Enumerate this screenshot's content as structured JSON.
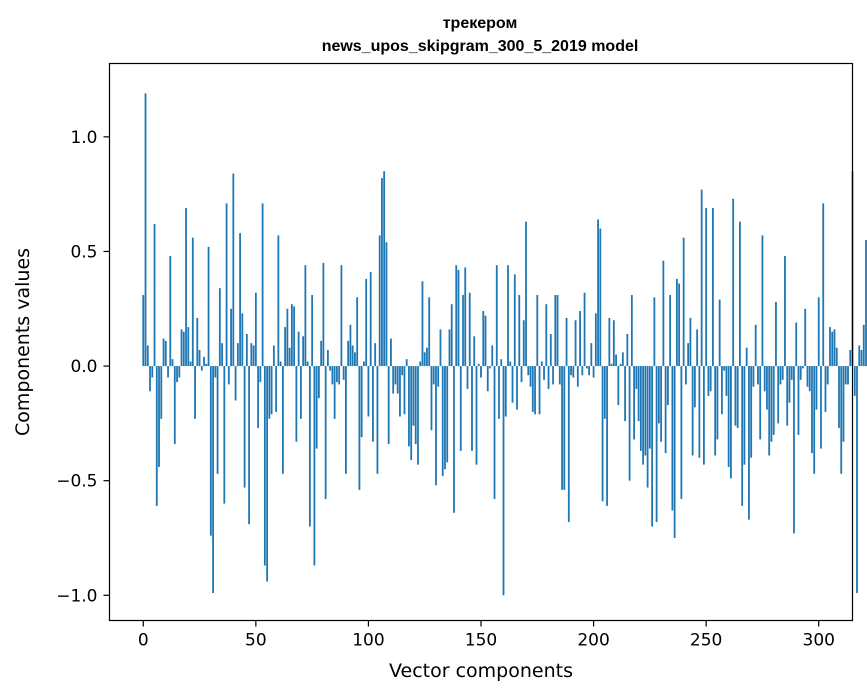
{
  "chart_data": {
    "type": "bar",
    "title_line1": "трекером",
    "title_line2": "news_upos_skipgram_300_5_2019 model",
    "xlabel": "Vector components",
    "ylabel": "Components values",
    "xlim": [
      -15,
      315
    ],
    "ylim": [
      -1.11,
      1.32
    ],
    "xticks": [
      0,
      50,
      100,
      150,
      200,
      250,
      300
    ],
    "xtick_labels": [
      "0",
      "50",
      "100",
      "150",
      "200",
      "250",
      "300"
    ],
    "yticks": [
      -1.0,
      -0.5,
      0.0,
      0.5,
      1.0
    ],
    "ytick_labels": [
      "−1.0",
      "−0.5",
      "0.0",
      "0.5",
      "1.0"
    ],
    "grid": false,
    "bar_color": "#1f77b4",
    "values": [
      0.31,
      1.19,
      0.09,
      -0.11,
      -0.05,
      0.62,
      -0.61,
      -0.44,
      -0.23,
      0.12,
      0.11,
      -0.05,
      0.48,
      0.03,
      -0.34,
      -0.07,
      -0.05,
      0.16,
      0.15,
      0.69,
      0.17,
      0.02,
      0.56,
      -0.23,
      0.21,
      0.07,
      -0.02,
      0.04,
      0.01,
      0.52,
      -0.74,
      -0.99,
      -0.05,
      -0.47,
      0.34,
      0.1,
      -0.6,
      0.71,
      -0.08,
      0.25,
      0.84,
      -0.15,
      0.1,
      0.58,
      0.23,
      -0.53,
      0.14,
      -0.69,
      0.1,
      0.09,
      0.32,
      -0.27,
      -0.07,
      0.71,
      -0.87,
      -0.94,
      -0.23,
      -0.21,
      0.09,
      -0.2,
      0.57,
      0.02,
      -0.47,
      0.17,
      0.25,
      0.08,
      0.27,
      0.26,
      -0.33,
      0.15,
      -0.23,
      0.13,
      0.44,
      0.02,
      -0.7,
      0.31,
      -0.87,
      -0.36,
      -0.14,
      0.11,
      0.45,
      -0.58,
      0.07,
      -0.02,
      -0.08,
      -0.23,
      -0.07,
      -0.08,
      0.44,
      -0.06,
      -0.47,
      0.11,
      0.18,
      0.09,
      0.06,
      0.3,
      -0.54,
      -0.31,
      0.02,
      0.38,
      -0.22,
      0.41,
      -0.33,
      0.1,
      -0.47,
      0.57,
      0.82,
      0.85,
      0.54,
      -0.34,
      0.12,
      -0.12,
      -0.08,
      -0.12,
      -0.22,
      -0.04,
      -0.21,
      0.03,
      -0.35,
      -0.41,
      -0.26,
      -0.34,
      -0.43,
      0.02,
      0.37,
      0.06,
      0.08,
      0.3,
      -0.28,
      -0.08,
      -0.52,
      -0.09,
      0.16,
      -0.48,
      -0.45,
      -0.42,
      0.16,
      0.27,
      -0.64,
      0.44,
      0.42,
      -0.37,
      0.31,
      0.43,
      -0.1,
      0.32,
      -0.37,
      0.13,
      -0.43,
      0.01,
      -0.05,
      0.24,
      0.22,
      -0.11,
      -0.01,
      0.09,
      -0.58,
      0.44,
      -0.23,
      0.03,
      -1.0,
      -0.22,
      0.44,
      0.02,
      -0.16,
      0.4,
      -0.19,
      0.31,
      -0.07,
      0.2,
      0.63,
      -0.04,
      -0.09,
      -0.2,
      -0.21,
      0.31,
      -0.21,
      0.02,
      -0.06,
      0.27,
      -0.1,
      0.14,
      -0.08,
      0.31,
      0.31,
      -0.08,
      -0.54,
      -0.54,
      0.21,
      -0.68,
      -0.04,
      -0.05,
      0.2,
      -0.09,
      0.24,
      -0.04,
      0.32,
      -0.01,
      -0.04,
      0.1,
      -0.05,
      0.23,
      0.64,
      0.6,
      -0.59,
      -0.23,
      -0.61,
      0.21,
      0.01,
      0.2,
      0.05,
      -0.17,
      0.01,
      0.06,
      -0.24,
      0.14,
      -0.5,
      0.31,
      -0.32,
      -0.1,
      -0.24,
      -0.37,
      -0.43,
      -0.39,
      -0.53,
      -0.36,
      -0.7,
      0.3,
      -0.68,
      -0.25,
      -0.33,
      0.46,
      -0.38,
      -0.17,
      0.31,
      -0.63,
      -0.75,
      0.38,
      0.36,
      -0.58,
      0.56,
      -0.08,
      0.1,
      0.21,
      -0.39,
      -0.18,
      0.16,
      -0.4,
      0.77,
      -0.43,
      0.69,
      -0.13,
      -0.11,
      0.69,
      -0.39,
      -0.32,
      0.29,
      -0.21,
      -0.02,
      -0.13,
      -0.44,
      -0.49,
      0.73,
      -0.26,
      -0.27,
      0.63,
      -0.61,
      -0.43,
      0.08,
      -0.67,
      -0.4,
      -0.09,
      0.18,
      -0.08,
      -0.32,
      0.57,
      -0.11,
      -0.19,
      -0.39,
      -0.33,
      -0.3,
      0.28,
      -0.25,
      -0.08,
      -0.06,
      0.48,
      -0.26,
      -0.16,
      -0.06,
      -0.73,
      0.19,
      -0.3,
      -0.06,
      -0.01,
      0.25,
      -0.09,
      -0.11,
      -0.38,
      -0.47,
      -0.19,
      0.3,
      -0.36,
      0.71,
      -0.2,
      -0.08,
      0.17,
      0.15,
      0.16,
      0.08,
      -0.27,
      -0.47,
      -0.33,
      -0.08,
      -0.08,
      0.07,
      0.85,
      -0.13,
      -0.99,
      0.09,
      0.07,
      0.18,
      0.55
    ]
  }
}
